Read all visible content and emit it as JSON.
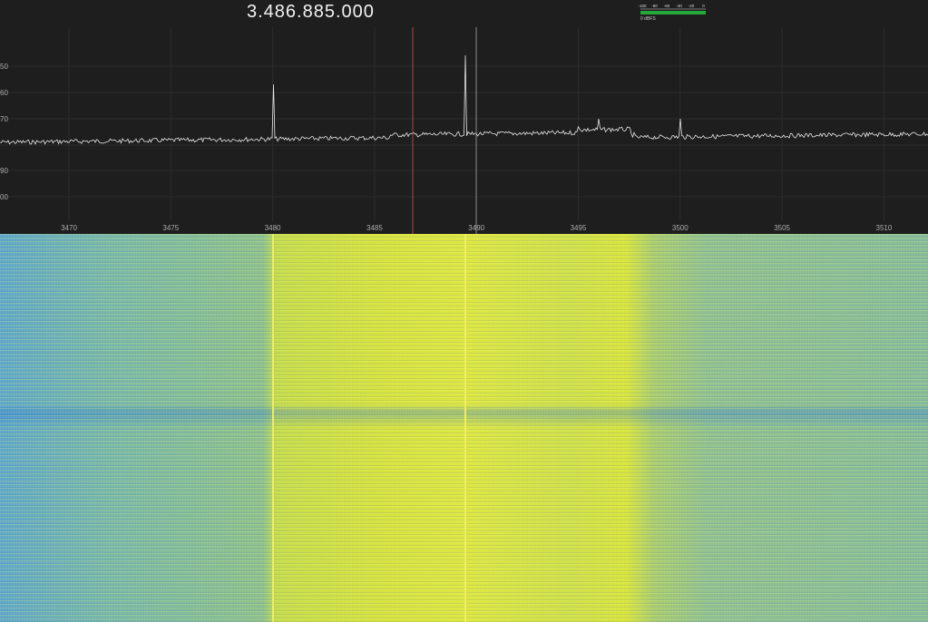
{
  "frequency_display": "3.486.885.000",
  "level_meter": {
    "ticks": [
      "-100",
      "-80",
      "-60",
      "-40",
      "-20",
      "0"
    ],
    "label": "0 dBFS"
  },
  "spectrum": {
    "xticks": [
      3470,
      3475,
      3480,
      3485,
      3490,
      3495,
      3500,
      3505,
      3510
    ],
    "ytick_labels": [
      "50",
      "60",
      "70",
      "90",
      "00"
    ]
  }
}
